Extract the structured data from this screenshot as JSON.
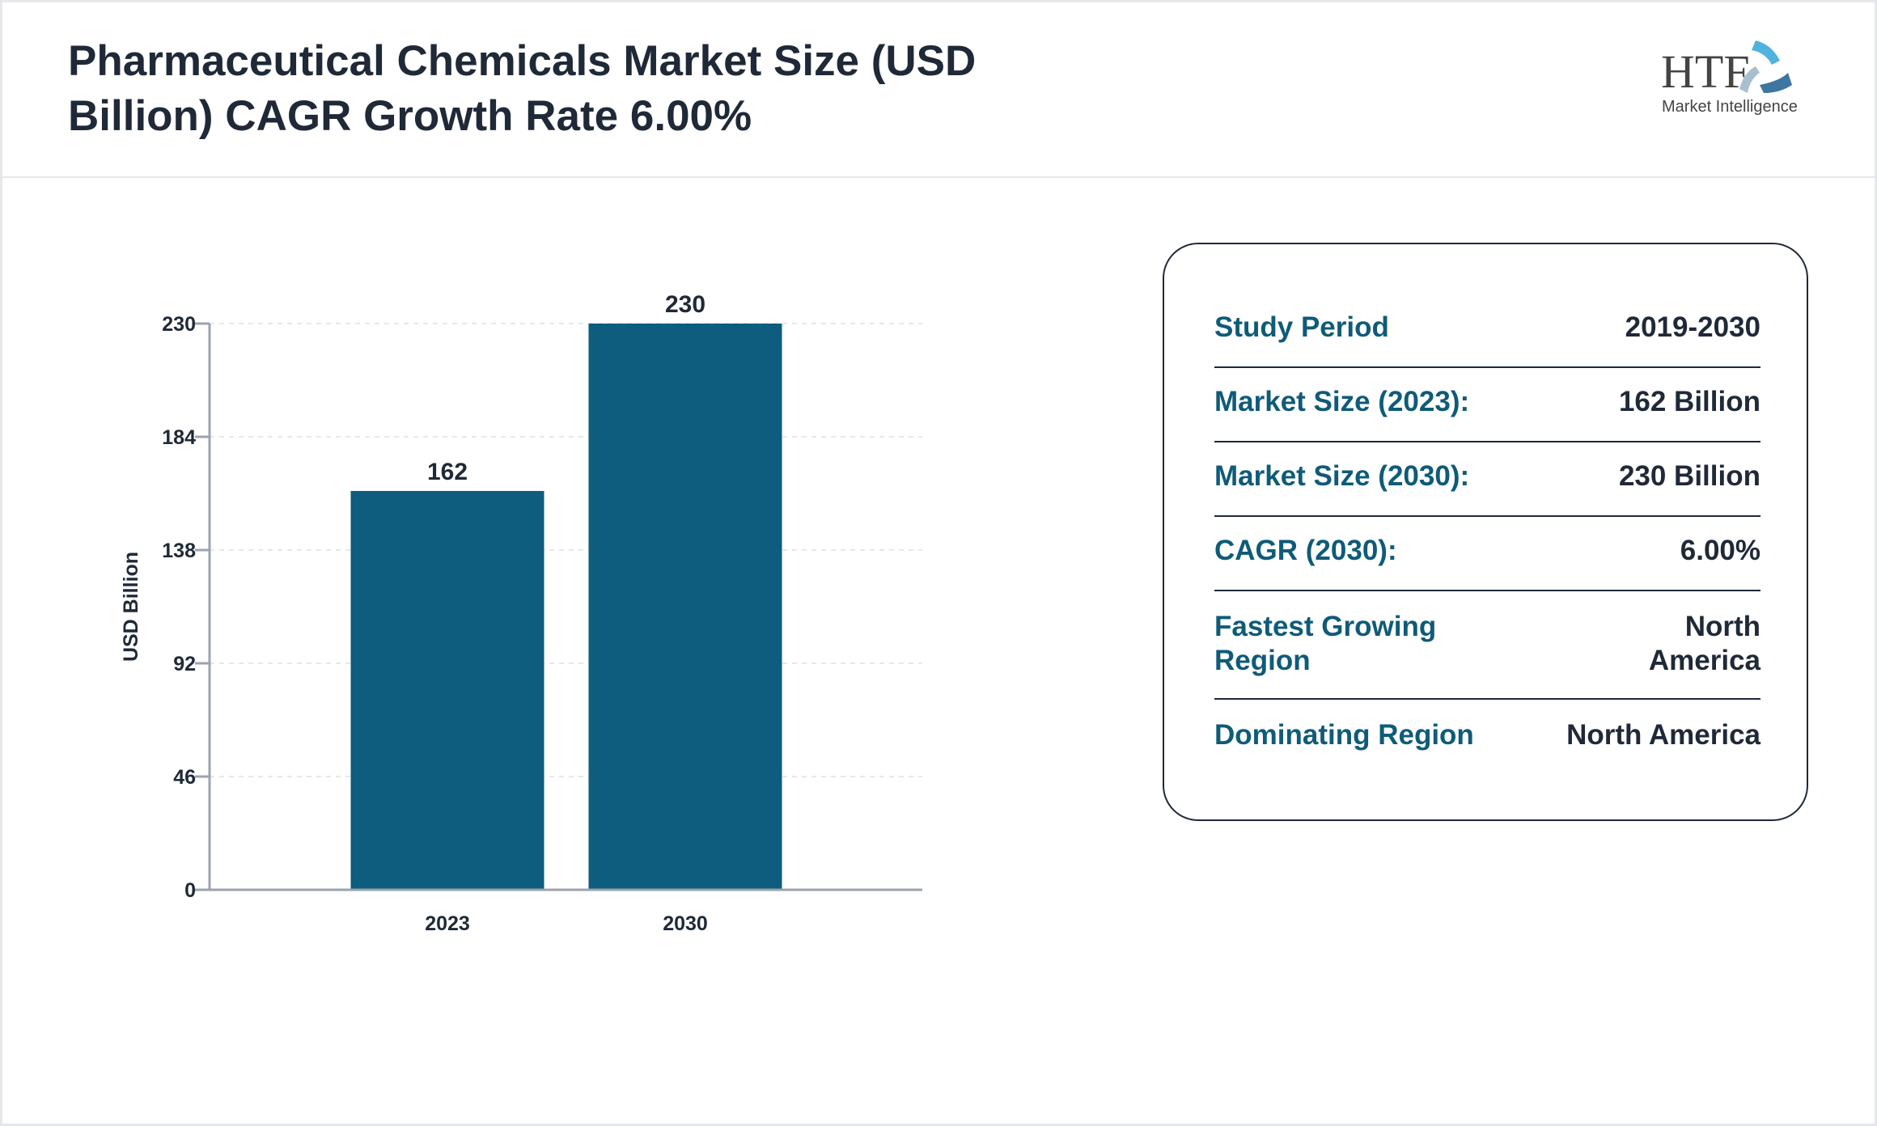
{
  "title": "Pharmaceutical Chemicals Market Size (USD Billion) CAGR Growth Rate 6.00%",
  "logo": {
    "text_main": "HTF",
    "text_sub": "Market Intelligence"
  },
  "chart_data": {
    "type": "bar",
    "categories": [
      "2023",
      "2030"
    ],
    "values": [
      162,
      230
    ],
    "ylabel": "USD Billion",
    "xlabel": "",
    "ylim": [
      0,
      230
    ],
    "yticks": [
      0,
      46,
      92,
      138,
      184,
      230
    ],
    "grid": true,
    "bar_color": "#0e5c7e"
  },
  "info": [
    {
      "label": "Study Period",
      "value": "2019-2030"
    },
    {
      "label": "Market Size (2023):",
      "value": "162 Billion"
    },
    {
      "label": "Market Size (2030):",
      "value": "230 Billion"
    },
    {
      "label": "CAGR (2030):",
      "value": "6.00%"
    },
    {
      "label": "Fastest Growing Region",
      "value": "North America"
    },
    {
      "label": "Dominating Region",
      "value": "North America"
    }
  ]
}
